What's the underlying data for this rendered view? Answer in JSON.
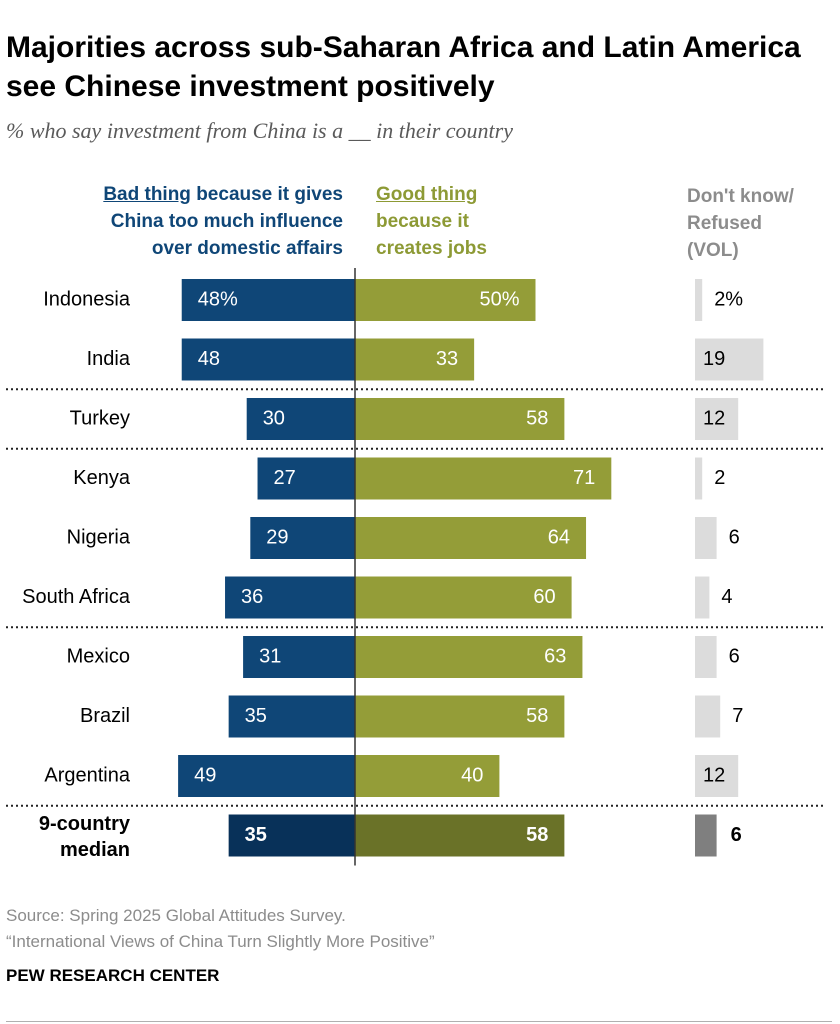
{
  "chart_data": {
    "type": "bar",
    "title": "Majorities across sub-Saharan Africa and Latin America see Chinese investment positively",
    "subtitle": "% who say investment from China is a __ in their country",
    "legend": {
      "bad_key": "Bad thing",
      "bad_rest_1": " because it gives",
      "bad_rest_2": "China too much influence",
      "bad_rest_3": "over domestic affairs",
      "good_key": "Good thing",
      "good_rest_1": "because it",
      "good_rest_2": "creates jobs",
      "dk_1": "Don't know/",
      "dk_2": "Refused",
      "dk_3": "(VOL)"
    },
    "categories": [
      "Indonesia",
      "India",
      "Turkey",
      "Kenya",
      "Nigeria",
      "South Africa",
      "Mexico",
      "Brazil",
      "Argentina"
    ],
    "series": [
      {
        "name": "Bad thing because it gives China too much influence over domestic affairs",
        "values": [
          48,
          48,
          30,
          27,
          29,
          36,
          31,
          35,
          49
        ],
        "color": "#0f4677"
      },
      {
        "name": "Good thing because it creates jobs",
        "values": [
          50,
          33,
          58,
          71,
          64,
          60,
          63,
          58,
          40
        ],
        "color": "#949d38"
      },
      {
        "name": "Don't know/Refused (VOL)",
        "values": [
          2,
          19,
          12,
          2,
          6,
          4,
          6,
          7,
          12
        ],
        "color": "#dcdcdc"
      }
    ],
    "value_labels": {
      "bad": [
        "48%",
        "48",
        "30",
        "27",
        "29",
        "36",
        "31",
        "35",
        "49"
      ],
      "good": [
        "50%",
        "33",
        "58",
        "71",
        "64",
        "60",
        "63",
        "58",
        "40"
      ],
      "dk": [
        "2%",
        "19",
        "12",
        "2",
        "6",
        "4",
        "6",
        "7",
        "12"
      ]
    },
    "group_separators_after": [
      "India",
      "Turkey",
      "South Africa",
      "Argentina"
    ],
    "median": {
      "label_line1": "9-country",
      "label_line2": "median",
      "bad": 35,
      "good": 58,
      "dk": 6,
      "bad_label": "35",
      "good_label": "58",
      "dk_label": "6",
      "colors": {
        "bad": "#083159",
        "good": "#6a7228",
        "dk": "#7f7f7f"
      }
    }
  },
  "source_line1": "Source: Spring 2025 Global Attitudes Survey.",
  "source_line2": "“International Views of China Turn Slightly More Positive”",
  "organization": "PEW RESEARCH CENTER"
}
